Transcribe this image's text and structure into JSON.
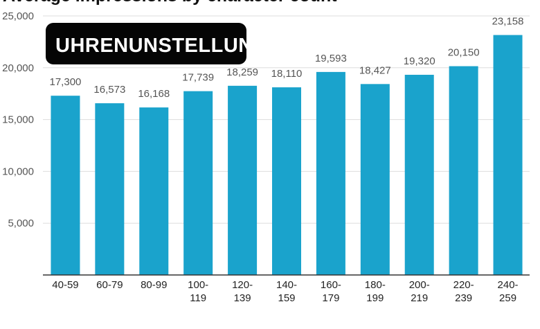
{
  "chart_data": {
    "type": "bar",
    "title": "Average impressions by character count",
    "categories": [
      [
        "40-59"
      ],
      [
        "60-79"
      ],
      [
        "80-99"
      ],
      [
        "100-",
        "119"
      ],
      [
        "120-",
        "139"
      ],
      [
        "140-",
        "159"
      ],
      [
        "160-",
        "179"
      ],
      [
        "180-",
        "199"
      ],
      [
        "200-",
        "219"
      ],
      [
        "220-",
        "239"
      ],
      [
        "240-",
        "259"
      ]
    ],
    "values": [
      17300,
      16573,
      16168,
      17739,
      18259,
      18110,
      19593,
      18427,
      19320,
      20150,
      23158
    ],
    "data_labels": [
      "17,300",
      "16,573",
      "16,168",
      "17,739",
      "18,259",
      "18,110",
      "19,593",
      "18,427",
      "19,320",
      "20,150",
      "23,158"
    ],
    "y_ticks": [
      5000,
      10000,
      15000,
      20000,
      25000
    ],
    "y_tick_labels": [
      "5,000",
      "10,000",
      "15,000",
      "20,000",
      "25,000"
    ],
    "ylim": [
      0,
      25000
    ],
    "xlabel": "",
    "ylabel": "",
    "grid": true,
    "bar_color": "#1aa3cc",
    "grid_color": "#dddddd",
    "watermark": "UHRENUNSTELLUNG.DE/"
  }
}
